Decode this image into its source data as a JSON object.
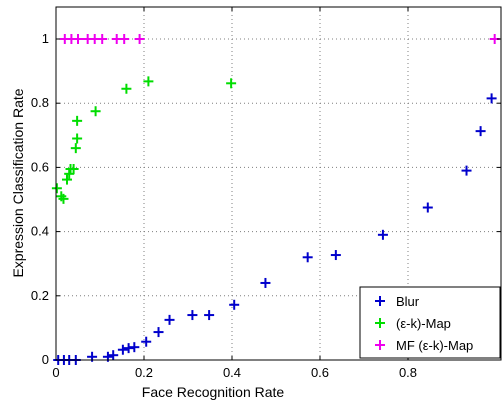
{
  "chart_data": {
    "type": "scatter",
    "xlabel": "Face Recognition Rate",
    "ylabel": "Expression Classification Rate",
    "xlim": [
      0,
      1.0
    ],
    "ylim": [
      0,
      1.1
    ],
    "xticks": [
      0,
      0.2,
      0.4,
      0.6,
      0.8
    ],
    "xtick_labels": [
      "0",
      "0.2",
      "0.4",
      "0.6",
      "0.8"
    ],
    "yticks": [
      0,
      0.2,
      0.4,
      0.6,
      0.8,
      1.0
    ],
    "ytick_labels": [
      "0",
      "0.2",
      "0.4",
      "0.6",
      "0.8",
      "1"
    ],
    "grid": true,
    "legend_position": "bottom-right",
    "series": [
      {
        "name": "Blur",
        "color": "#0000cc",
        "marker": "plus",
        "points": [
          [
            0.005,
            0.0
          ],
          [
            0.018,
            0.0
          ],
          [
            0.03,
            0.0
          ],
          [
            0.045,
            0.0
          ],
          [
            0.082,
            0.01
          ],
          [
            0.118,
            0.01
          ],
          [
            0.13,
            0.015
          ],
          [
            0.152,
            0.032
          ],
          [
            0.165,
            0.037
          ],
          [
            0.178,
            0.04
          ],
          [
            0.205,
            0.057
          ],
          [
            0.233,
            0.087
          ],
          [
            0.258,
            0.125
          ],
          [
            0.31,
            0.14
          ],
          [
            0.348,
            0.14
          ],
          [
            0.405,
            0.172
          ],
          [
            0.476,
            0.24
          ],
          [
            0.572,
            0.32
          ],
          [
            0.636,
            0.327
          ],
          [
            0.743,
            0.39
          ],
          [
            0.845,
            0.475
          ],
          [
            0.933,
            0.59
          ],
          [
            0.965,
            0.713
          ],
          [
            0.99,
            0.815
          ]
        ]
      },
      {
        "name": "(ε-k)-Map",
        "color": "#00dd00",
        "marker": "plus",
        "points": [
          [
            0.002,
            0.535
          ],
          [
            0.012,
            0.51
          ],
          [
            0.017,
            0.502
          ],
          [
            0.025,
            0.562
          ],
          [
            0.03,
            0.58
          ],
          [
            0.033,
            0.595
          ],
          [
            0.04,
            0.595
          ],
          [
            0.045,
            0.66
          ],
          [
            0.048,
            0.69
          ],
          [
            0.048,
            0.745
          ],
          [
            0.09,
            0.775
          ],
          [
            0.16,
            0.845
          ],
          [
            0.21,
            0.868
          ],
          [
            0.398,
            0.862
          ]
        ]
      },
      {
        "name": "MF (ε-k)-Map",
        "color": "#ee00ee",
        "marker": "plus",
        "points": [
          [
            0.02,
            1.0
          ],
          [
            0.035,
            1.0
          ],
          [
            0.05,
            1.0
          ],
          [
            0.072,
            1.0
          ],
          [
            0.088,
            1.0
          ],
          [
            0.105,
            1.0
          ],
          [
            0.138,
            1.0
          ],
          [
            0.155,
            1.0
          ],
          [
            0.19,
            1.0
          ],
          [
            0.997,
            1.0
          ]
        ]
      }
    ]
  }
}
